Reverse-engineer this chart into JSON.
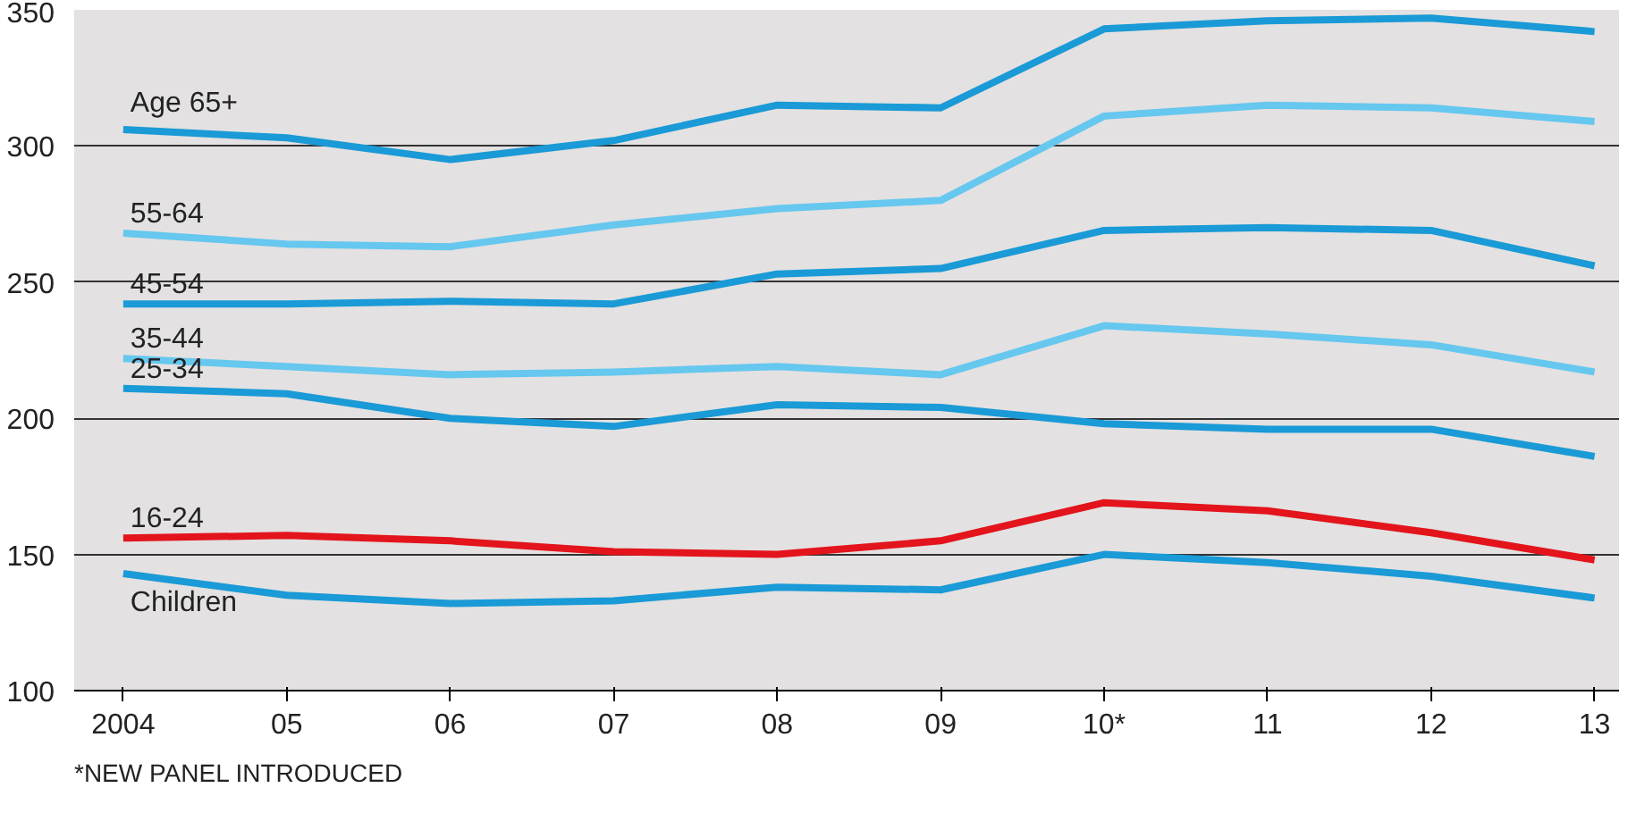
{
  "chart_data": {
    "type": "line",
    "categories": [
      "2004",
      "05",
      "06",
      "07",
      "08",
      "09",
      "10*",
      "11",
      "12",
      "13"
    ],
    "series": [
      {
        "name": "Age 65+",
        "color": "#1a9ad6",
        "values": [
          306,
          303,
          295,
          302,
          315,
          314,
          343,
          346,
          347,
          342
        ]
      },
      {
        "name": "55-64",
        "color": "#66c7ef",
        "values": [
          268,
          264,
          263,
          271,
          277,
          280,
          311,
          315,
          314,
          309
        ]
      },
      {
        "name": "45-54",
        "color": "#1a9ad6",
        "values": [
          242,
          242,
          243,
          242,
          253,
          255,
          269,
          270,
          269,
          256
        ]
      },
      {
        "name": "35-44",
        "color": "#66c7ef",
        "values": [
          222,
          219,
          216,
          217,
          219,
          216,
          234,
          231,
          227,
          217
        ]
      },
      {
        "name": "25-34",
        "color": "#1a9ad6",
        "values": [
          211,
          209,
          200,
          197,
          205,
          204,
          198,
          196,
          196,
          186
        ]
      },
      {
        "name": "16-24",
        "color": "#e3141c",
        "values": [
          156,
          157,
          155,
          151,
          150,
          155,
          169,
          166,
          158,
          148
        ]
      },
      {
        "name": "Children",
        "color": "#1a9ad6",
        "values": [
          143,
          135,
          132,
          133,
          138,
          137,
          150,
          147,
          142,
          134
        ]
      }
    ],
    "ylim": [
      100,
      350
    ],
    "yticks": [
      100,
      150,
      200,
      250,
      300,
      350
    ],
    "grid": "y",
    "legend": false,
    "marker": "none",
    "line_style": "solid",
    "annotations": [
      "*NEW PANEL INTRODUCED"
    ]
  }
}
